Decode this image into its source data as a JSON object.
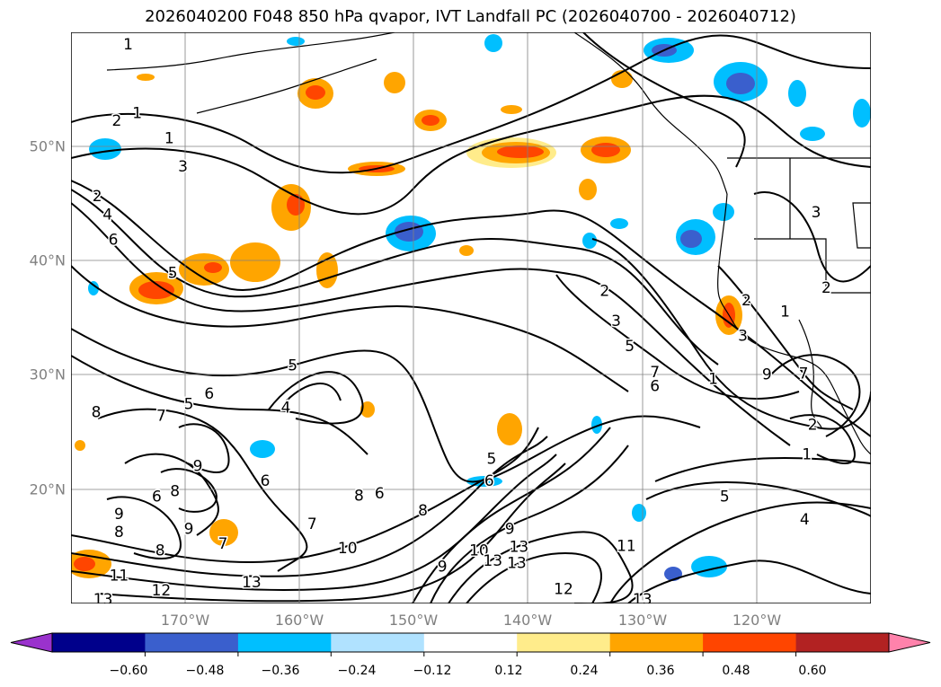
{
  "title": "2026040200 F048 850 hPa qvapor, IVT Landfall PC (2026040700 - 2026040712)",
  "map": {
    "lat_labels": [
      "50°N",
      "40°N",
      "30°N",
      "20°N"
    ],
    "lon_labels": [
      "170°W",
      "160°W",
      "150°W",
      "140°W",
      "130°W",
      "120°W"
    ],
    "lat_values": [
      50,
      40,
      30,
      20
    ],
    "lon_values": [
      -170,
      -160,
      -150,
      -140,
      -130,
      -120
    ],
    "lon_range": [
      -180,
      -110
    ],
    "lat_range": [
      10,
      60
    ],
    "grid": true
  },
  "contour_labels": [
    {
      "text": "1",
      "lon": -175,
      "lat": 58.9
    },
    {
      "text": "2",
      "lon": -176,
      "lat": 52.2
    },
    {
      "text": "1",
      "lon": -174.2,
      "lat": 52.9
    },
    {
      "text": "1",
      "lon": -171.4,
      "lat": 50.7
    },
    {
      "text": "3",
      "lon": -170.2,
      "lat": 48.2
    },
    {
      "text": "2",
      "lon": -177.7,
      "lat": 45.6
    },
    {
      "text": "4",
      "lon": -176.8,
      "lat": 44
    },
    {
      "text": "6",
      "lon": -176.3,
      "lat": 41.8
    },
    {
      "text": "5",
      "lon": -171.1,
      "lat": 38.9
    },
    {
      "text": "5",
      "lon": -160.6,
      "lat": 30.8
    },
    {
      "text": "4",
      "lon": -161.2,
      "lat": 27.1
    },
    {
      "text": "8",
      "lon": -177.8,
      "lat": 26.7
    },
    {
      "text": "7",
      "lon": -172.1,
      "lat": 26.4
    },
    {
      "text": "5",
      "lon": -169.7,
      "lat": 27.4
    },
    {
      "text": "6",
      "lon": -167.9,
      "lat": 28.3
    },
    {
      "text": "9",
      "lon": -168.9,
      "lat": 22
    },
    {
      "text": "6",
      "lon": -163,
      "lat": 20.7
    },
    {
      "text": "6",
      "lon": -172.5,
      "lat": 19.3
    },
    {
      "text": "8",
      "lon": -170.9,
      "lat": 19.8
    },
    {
      "text": "9",
      "lon": -175.8,
      "lat": 17.8
    },
    {
      "text": "8",
      "lon": -175.8,
      "lat": 16.2
    },
    {
      "text": "9",
      "lon": -169.7,
      "lat": 16.5
    },
    {
      "text": "7",
      "lon": -166.7,
      "lat": 15.2
    },
    {
      "text": "8",
      "lon": -172.2,
      "lat": 14.6
    },
    {
      "text": "11",
      "lon": -175.8,
      "lat": 12.4
    },
    {
      "text": "12",
      "lon": -172.1,
      "lat": 11.1
    },
    {
      "text": "13",
      "lon": -177.2,
      "lat": 10.3
    },
    {
      "text": "13",
      "lon": -164.2,
      "lat": 11.8
    },
    {
      "text": "7",
      "lon": -158.9,
      "lat": 16.9
    },
    {
      "text": "10",
      "lon": -155.8,
      "lat": 14.8
    },
    {
      "text": "8",
      "lon": -154.8,
      "lat": 19.4
    },
    {
      "text": "6",
      "lon": -153,
      "lat": 19.6
    },
    {
      "text": "8",
      "lon": -149.2,
      "lat": 18.1
    },
    {
      "text": "5",
      "lon": -143.2,
      "lat": 22.6
    },
    {
      "text": "6",
      "lon": -143.4,
      "lat": 20.7
    },
    {
      "text": "9",
      "lon": -147.5,
      "lat": 13.2
    },
    {
      "text": "10",
      "lon": -144.3,
      "lat": 14.6
    },
    {
      "text": "13",
      "lon": -143.1,
      "lat": 13.7
    },
    {
      "text": "13",
      "lon": -140.8,
      "lat": 14.9
    },
    {
      "text": "13",
      "lon": -141,
      "lat": 13.5
    },
    {
      "text": "9",
      "lon": -141.6,
      "lat": 16.5
    },
    {
      "text": "12",
      "lon": -136.9,
      "lat": 11.2
    },
    {
      "text": "13",
      "lon": -130,
      "lat": 10.3
    },
    {
      "text": "11",
      "lon": -131.4,
      "lat": 15
    },
    {
      "text": "5",
      "lon": -122.8,
      "lat": 19.3
    },
    {
      "text": "4",
      "lon": -115.8,
      "lat": 17.3
    },
    {
      "text": "2",
      "lon": -133.3,
      "lat": 37.3
    },
    {
      "text": "3",
      "lon": -132.3,
      "lat": 34.7
    },
    {
      "text": "5",
      "lon": -131.1,
      "lat": 32.5
    },
    {
      "text": "7",
      "lon": -128.9,
      "lat": 30.2
    },
    {
      "text": "6",
      "lon": -128.9,
      "lat": 29
    },
    {
      "text": "1",
      "lon": -123.8,
      "lat": 29.6
    },
    {
      "text": "9",
      "lon": -119.1,
      "lat": 30
    },
    {
      "text": "2",
      "lon": -120.9,
      "lat": 36.5
    },
    {
      "text": "3",
      "lon": -121.2,
      "lat": 33.4
    },
    {
      "text": "1",
      "lon": -117.5,
      "lat": 35.5
    },
    {
      "text": "7",
      "lon": -115.9,
      "lat": 30.1
    },
    {
      "text": "2",
      "lon": -115.1,
      "lat": 25.6
    },
    {
      "text": "1",
      "lon": -115.6,
      "lat": 23
    },
    {
      "text": "3",
      "lon": -114.8,
      "lat": 44.2
    },
    {
      "text": "2",
      "lon": -113.9,
      "lat": 37.6
    }
  ],
  "colorbar": {
    "tick_labels": [
      "−0.60",
      "−0.48",
      "−0.36",
      "−0.24",
      "−0.12",
      "0.12",
      "0.24",
      "0.36",
      "0.48",
      "0.60"
    ],
    "colors": [
      "#9a32cd",
      "#00008b",
      "#3a5fcd",
      "#00bfff",
      "#b0e2ff",
      "#ffffff",
      "#ffec8b",
      "#ffa500",
      "#ff4500",
      "#b22222",
      "#ff82ab"
    ]
  }
}
